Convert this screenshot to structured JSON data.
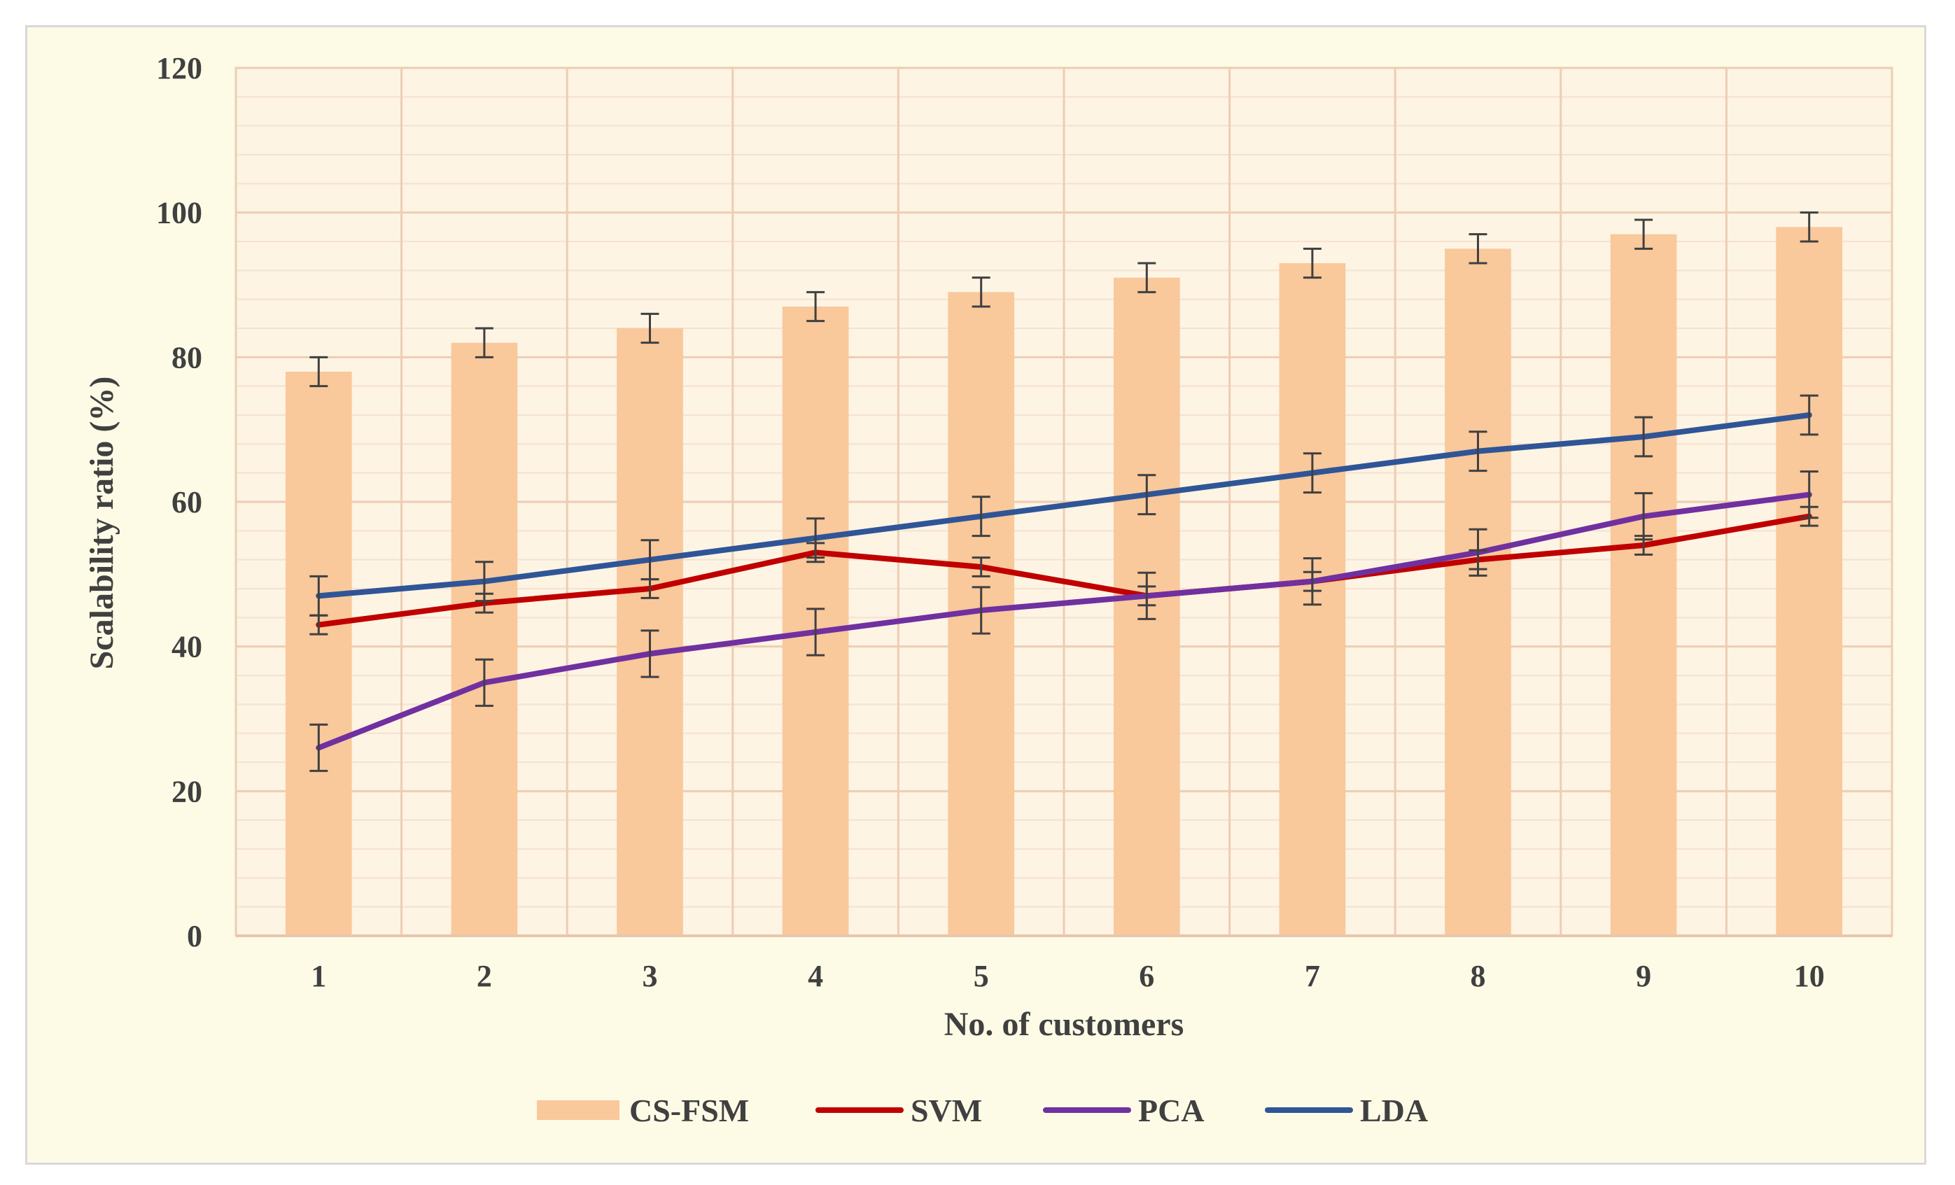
{
  "chart_data": {
    "type": "bar",
    "xlabel": "No. of customers",
    "ylabel": "Scalability ratio (%)",
    "ylim": [
      0,
      120
    ],
    "yticks": [
      "0",
      "20",
      "40",
      "60",
      "80",
      "100",
      "120"
    ],
    "categories": [
      "1",
      "2",
      "3",
      "4",
      "5",
      "6",
      "7",
      "8",
      "9",
      "10"
    ],
    "grid": true,
    "legend_position": "bottom",
    "series": [
      {
        "name": "CS-FSM",
        "kind": "bar",
        "color": "#f9c89b",
        "values": [
          78,
          82,
          84,
          87,
          89,
          91,
          93,
          95,
          97,
          98
        ],
        "error": 2
      },
      {
        "name": "SVM",
        "kind": "line",
        "color": "#c00000",
        "values": [
          43,
          46,
          48,
          53,
          51,
          47,
          49,
          52,
          54,
          58
        ],
        "error": 1.3
      },
      {
        "name": "PCA",
        "kind": "line",
        "color": "#7030a0",
        "values": [
          26,
          35,
          39,
          42,
          45,
          47,
          49,
          53,
          58,
          61
        ],
        "error": 3.2
      },
      {
        "name": "LDA",
        "kind": "line",
        "color": "#2f5597",
        "values": [
          47,
          49,
          52,
          55,
          58,
          61,
          64,
          67,
          69,
          72
        ],
        "error": 2.7
      }
    ]
  }
}
